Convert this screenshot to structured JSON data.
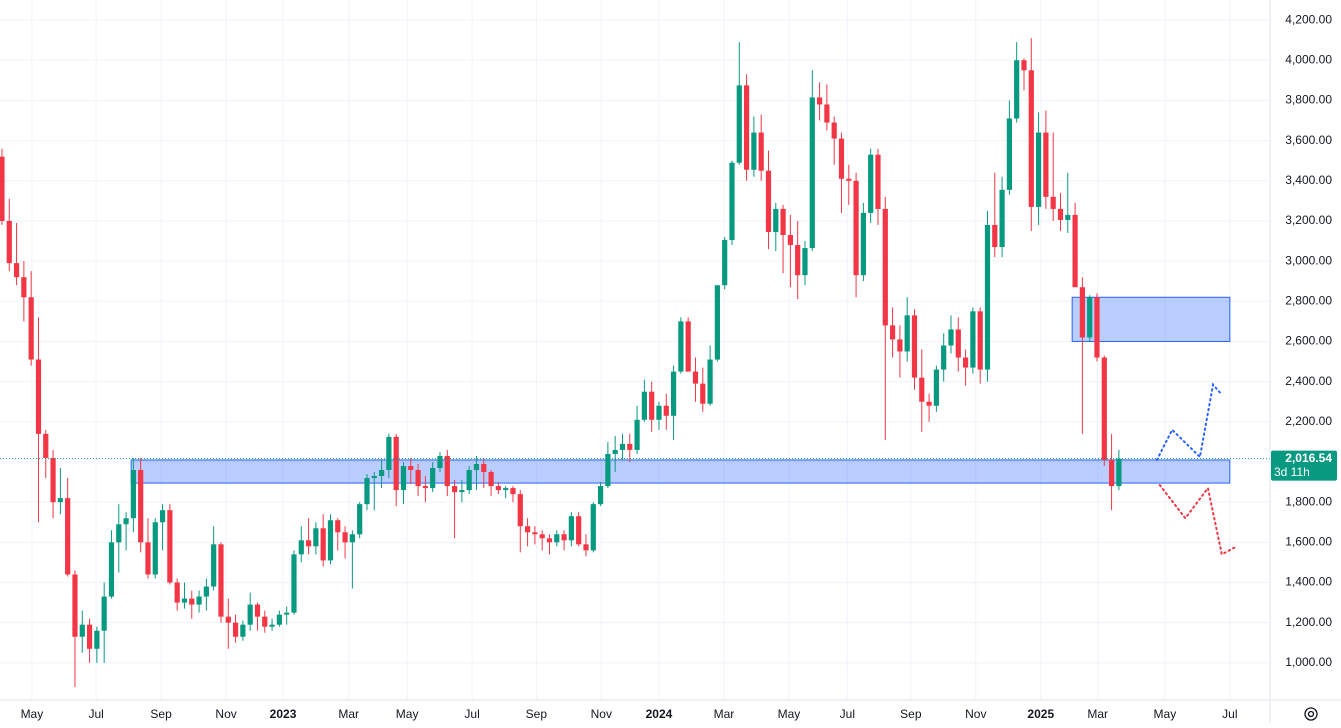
{
  "chart_data": {
    "type": "candlestick",
    "up_color": "#089981",
    "down_color": "#f23645",
    "ylim": [
      815,
      4300
    ],
    "xlim": [
      -0.27,
      173.7
    ],
    "yticks": [
      {
        "value": 1000,
        "label": "1,000.00"
      },
      {
        "value": 1200,
        "label": "1,200.00"
      },
      {
        "value": 1400,
        "label": "1,400.00"
      },
      {
        "value": 1600,
        "label": "1,600.00"
      },
      {
        "value": 1800,
        "label": "1,800.00"
      },
      {
        "value": 2000,
        "label": "2,000.00"
      },
      {
        "value": 2200,
        "label": "2,200.00"
      },
      {
        "value": 2400,
        "label": "2,400.00"
      },
      {
        "value": 2600,
        "label": "2,600.00"
      },
      {
        "value": 2800,
        "label": "2,800.00"
      },
      {
        "value": 3000,
        "label": "3,000.00"
      },
      {
        "value": 3200,
        "label": "3,200.00"
      },
      {
        "value": 3400,
        "label": "3,400.00"
      },
      {
        "value": 3600,
        "label": "3,600.00"
      },
      {
        "value": 3800,
        "label": "3,800.00"
      },
      {
        "value": 4000,
        "label": "4,000.00"
      },
      {
        "value": 4200,
        "label": "4,200.00"
      }
    ],
    "xticks": [
      {
        "value": 4.1,
        "label": "May"
      },
      {
        "value": 12.9,
        "label": "Jul"
      },
      {
        "value": 21.8,
        "label": "Sep"
      },
      {
        "value": 30.7,
        "label": "Nov"
      },
      {
        "value": 38.5,
        "label": "2023"
      },
      {
        "value": 47.5,
        "label": "Mar"
      },
      {
        "value": 55.5,
        "label": "May"
      },
      {
        "value": 64.4,
        "label": "Jul"
      },
      {
        "value": 73.2,
        "label": "Sep"
      },
      {
        "value": 82.1,
        "label": "Nov"
      },
      {
        "value": 90.0,
        "label": "2024"
      },
      {
        "value": 98.9,
        "label": "Mar"
      },
      {
        "value": 107.8,
        "label": "May"
      },
      {
        "value": 115.8,
        "label": "Jul"
      },
      {
        "value": 124.5,
        "label": "Sep"
      },
      {
        "value": 133.4,
        "label": "Nov"
      },
      {
        "value": 142.3,
        "label": "2025"
      },
      {
        "value": 150.1,
        "label": "Mar"
      },
      {
        "value": 159.3,
        "label": "May"
      },
      {
        "value": 168.2,
        "label": "Jul"
      }
    ],
    "grid": true,
    "candles": [
      [
        3520,
        3560,
        3180,
        3200
      ],
      [
        3200,
        3310,
        2950,
        2990
      ],
      [
        2990,
        3190,
        2880,
        2920
      ],
      [
        2920,
        3000,
        2700,
        2820
      ],
      [
        2820,
        2950,
        2480,
        2510
      ],
      [
        2510,
        2720,
        1700,
        2140
      ],
      [
        2140,
        2160,
        1920,
        2020
      ],
      [
        2020,
        2060,
        1720,
        1800
      ],
      [
        1800,
        1970,
        1740,
        1820
      ],
      [
        1820,
        1920,
        1430,
        1440
      ],
      [
        1440,
        1460,
        880,
        1130
      ],
      [
        1130,
        1260,
        1050,
        1190
      ],
      [
        1190,
        1220,
        1000,
        1070
      ],
      [
        1070,
        1180,
        1000,
        1160
      ],
      [
        1160,
        1400,
        1000,
        1330
      ],
      [
        1330,
        1660,
        1320,
        1600
      ],
      [
        1600,
        1790,
        1450,
        1690
      ],
      [
        1690,
        1750,
        1560,
        1720
      ],
      [
        1720,
        2020,
        1650,
        1960
      ],
      [
        1960,
        2020,
        1550,
        1600
      ],
      [
        1600,
        1720,
        1420,
        1440
      ],
      [
        1440,
        1720,
        1420,
        1700
      ],
      [
        1700,
        1790,
        1560,
        1760
      ],
      [
        1760,
        1790,
        1390,
        1400
      ],
      [
        1400,
        1420,
        1260,
        1300
      ],
      [
        1300,
        1400,
        1270,
        1320
      ],
      [
        1320,
        1360,
        1220,
        1290
      ],
      [
        1290,
        1360,
        1250,
        1330
      ],
      [
        1330,
        1420,
        1260,
        1380
      ],
      [
        1380,
        1680,
        1360,
        1590
      ],
      [
        1590,
        1600,
        1200,
        1230
      ],
      [
        1230,
        1320,
        1070,
        1200
      ],
      [
        1200,
        1240,
        1100,
        1130
      ],
      [
        1130,
        1210,
        1110,
        1190
      ],
      [
        1190,
        1350,
        1160,
        1290
      ],
      [
        1290,
        1300,
        1160,
        1230
      ],
      [
        1230,
        1260,
        1150,
        1180
      ],
      [
        1180,
        1220,
        1160,
        1190
      ],
      [
        1190,
        1260,
        1180,
        1240
      ],
      [
        1240,
        1280,
        1190,
        1250
      ],
      [
        1250,
        1560,
        1240,
        1540
      ],
      [
        1540,
        1680,
        1500,
        1610
      ],
      [
        1610,
        1720,
        1540,
        1580
      ],
      [
        1580,
        1700,
        1540,
        1670
      ],
      [
        1670,
        1740,
        1480,
        1510
      ],
      [
        1510,
        1740,
        1490,
        1710
      ],
      [
        1710,
        1720,
        1560,
        1650
      ],
      [
        1650,
        1680,
        1520,
        1600
      ],
      [
        1600,
        1660,
        1370,
        1640
      ],
      [
        1640,
        1800,
        1620,
        1790
      ],
      [
        1790,
        1940,
        1760,
        1920
      ],
      [
        1920,
        1950,
        1760,
        1930
      ],
      [
        1930,
        2010,
        1870,
        1960
      ],
      [
        1960,
        2140,
        1920,
        2125
      ],
      [
        2125,
        2140,
        1780,
        1860
      ],
      [
        1860,
        2000,
        1790,
        1980
      ],
      [
        1980,
        2020,
        1890,
        1960
      ],
      [
        1960,
        1990,
        1830,
        1880
      ],
      [
        1880,
        1930,
        1800,
        1870
      ],
      [
        1870,
        2000,
        1850,
        1970
      ],
      [
        1970,
        2050,
        1950,
        2030
      ],
      [
        2030,
        2060,
        1830,
        1880
      ],
      [
        1880,
        1910,
        1620,
        1850
      ],
      [
        1850,
        1910,
        1800,
        1860
      ],
      [
        1860,
        1980,
        1840,
        1960
      ],
      [
        1960,
        2030,
        1860,
        1990
      ],
      [
        1990,
        2020,
        1870,
        1950
      ],
      [
        1950,
        1960,
        1830,
        1880
      ],
      [
        1880,
        1900,
        1840,
        1860
      ],
      [
        1860,
        1880,
        1820,
        1870
      ],
      [
        1870,
        1880,
        1800,
        1840
      ],
      [
        1840,
        1860,
        1550,
        1680
      ],
      [
        1680,
        1720,
        1580,
        1650
      ],
      [
        1650,
        1680,
        1590,
        1640
      ],
      [
        1640,
        1660,
        1560,
        1620
      ],
      [
        1620,
        1640,
        1540,
        1600
      ],
      [
        1600,
        1660,
        1580,
        1640
      ],
      [
        1640,
        1660,
        1560,
        1610
      ],
      [
        1610,
        1750,
        1580,
        1730
      ],
      [
        1730,
        1750,
        1580,
        1590
      ],
      [
        1590,
        1640,
        1530,
        1560
      ],
      [
        1560,
        1800,
        1550,
        1790
      ],
      [
        1790,
        1900,
        1780,
        1880
      ],
      [
        1880,
        2100,
        1870,
        2040
      ],
      [
        2040,
        2130,
        1950,
        2060
      ],
      [
        2060,
        2140,
        2010,
        2090
      ],
      [
        2090,
        2140,
        2000,
        2060
      ],
      [
        2060,
        2280,
        2040,
        2210
      ],
      [
        2210,
        2410,
        2200,
        2350
      ],
      [
        2350,
        2400,
        2150,
        2210
      ],
      [
        2210,
        2300,
        2160,
        2280
      ],
      [
        2280,
        2340,
        2160,
        2230
      ],
      [
        2230,
        2480,
        2110,
        2450
      ],
      [
        2450,
        2720,
        2440,
        2700
      ],
      [
        2700,
        2720,
        2480,
        2450
      ],
      [
        2450,
        2520,
        2300,
        2390
      ],
      [
        2390,
        2470,
        2250,
        2290
      ],
      [
        2290,
        2580,
        2280,
        2510
      ],
      [
        2510,
        2880,
        2500,
        2880
      ],
      [
        2880,
        3120,
        2860,
        3105
      ],
      [
        3105,
        3500,
        3080,
        3490
      ],
      [
        3490,
        4090,
        3480,
        3875
      ],
      [
        3875,
        3930,
        3400,
        3455
      ],
      [
        3455,
        3720,
        3420,
        3640
      ],
      [
        3640,
        3730,
        3400,
        3450
      ],
      [
        3450,
        3550,
        3060,
        3145
      ],
      [
        3145,
        3290,
        3050,
        3260
      ],
      [
        3260,
        3280,
        2940,
        3130
      ],
      [
        3130,
        3230,
        2870,
        3080
      ],
      [
        3080,
        3200,
        2810,
        2930
      ],
      [
        2930,
        3100,
        2880,
        3065
      ],
      [
        3065,
        3950,
        3050,
        3815
      ],
      [
        3815,
        3890,
        3700,
        3780
      ],
      [
        3780,
        3880,
        3650,
        3690
      ],
      [
        3690,
        3720,
        3480,
        3610
      ],
      [
        3610,
        3640,
        3240,
        3410
      ],
      [
        3410,
        3480,
        3280,
        3400
      ],
      [
        3400,
        3440,
        2820,
        2930
      ],
      [
        2930,
        3290,
        2900,
        3240
      ],
      [
        3240,
        3560,
        3190,
        3530
      ],
      [
        3530,
        3560,
        3180,
        3260
      ],
      [
        3260,
        3320,
        2110,
        2680
      ],
      [
        2680,
        2770,
        2520,
        2610
      ],
      [
        2610,
        2680,
        2420,
        2550
      ],
      [
        2550,
        2820,
        2500,
        2730
      ],
      [
        2730,
        2760,
        2360,
        2420
      ],
      [
        2420,
        2560,
        2150,
        2300
      ],
      [
        2300,
        2340,
        2200,
        2280
      ],
      [
        2280,
        2480,
        2250,
        2460
      ],
      [
        2460,
        2640,
        2400,
        2580
      ],
      [
        2580,
        2730,
        2540,
        2660
      ],
      [
        2660,
        2720,
        2450,
        2520
      ],
      [
        2520,
        2560,
        2380,
        2470
      ],
      [
        2470,
        2770,
        2440,
        2750
      ],
      [
        2750,
        2770,
        2390,
        2460
      ],
      [
        2460,
        3250,
        2400,
        3180
      ],
      [
        3180,
        3440,
        3020,
        3070
      ],
      [
        3070,
        3420,
        3020,
        3355
      ],
      [
        3355,
        3800,
        3330,
        3710
      ],
      [
        3710,
        4090,
        3690,
        4000
      ],
      [
        4000,
        4010,
        3850,
        3950
      ],
      [
        3950,
        4110,
        3150,
        3270
      ],
      [
        3270,
        3740,
        3180,
        3640
      ],
      [
        3640,
        3750,
        3260,
        3320
      ],
      [
        3320,
        3640,
        3200,
        3260
      ],
      [
        3260,
        3340,
        3150,
        3205
      ],
      [
        3205,
        3440,
        3140,
        3230
      ],
      [
        3230,
        3290,
        2870,
        2870
      ],
      [
        2870,
        2920,
        2140,
        2620
      ],
      [
        2620,
        2830,
        2600,
        2820
      ],
      [
        2820,
        2840,
        2500,
        2520
      ],
      [
        2520,
        2530,
        1980,
        2010
      ],
      [
        2010,
        2140,
        1760,
        1880
      ],
      [
        1880,
        2060,
        1860,
        2016.54
      ]
    ],
    "zones": [
      {
        "x": [
          17.7,
          168.2
        ],
        "y": [
          1895,
          2010
        ]
      },
      {
        "x": [
          146.6,
          168.2
        ],
        "y": [
          2600,
          2820
        ]
      }
    ],
    "projections": [
      {
        "color": "#2962ff",
        "x": [
          158.2,
          160.3,
          164.1,
          165.9,
          167.1
        ],
        "y": [
          2010,
          2160,
          2025,
          2385,
          2335
        ]
      },
      {
        "color": "#f23645",
        "x": [
          158.6,
          162.1,
          165.2,
          167.1,
          168.9
        ],
        "y": [
          1885,
          1720,
          1870,
          1540,
          1575
        ]
      }
    ],
    "last_price": {
      "value": 2016.54,
      "label": "2,016.54"
    },
    "countdown": "3d 11h"
  }
}
